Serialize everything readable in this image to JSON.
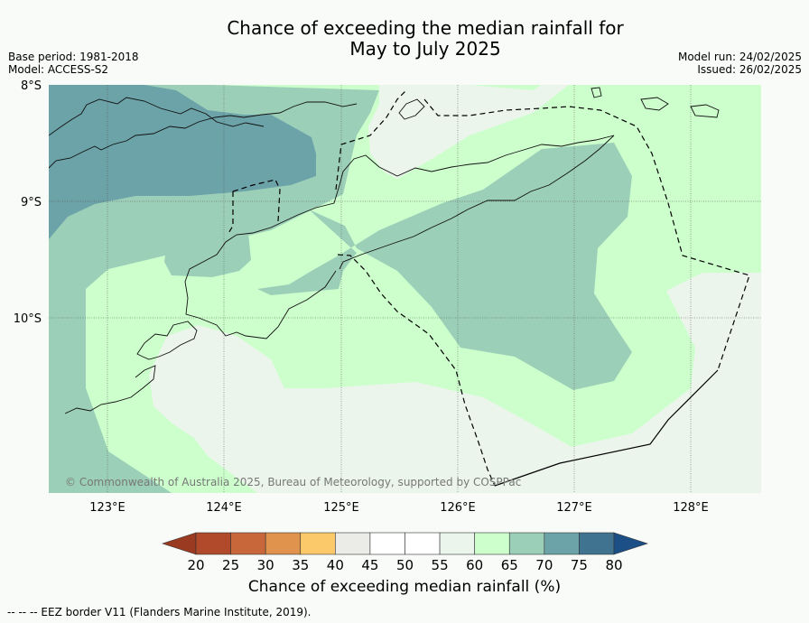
{
  "title_line1": "Chance of exceeding the median rainfall for",
  "title_line2": "May to July 2025",
  "meta_left": [
    "Base period: 1981-2018",
    "Model: ACCESS-S2"
  ],
  "meta_right": [
    "Model run: 24/02/2025",
    "Issued: 26/02/2025"
  ],
  "lat_labels": [
    "8°S",
    "9°S",
    "10°S"
  ],
  "lon_labels": [
    "123°E",
    "124°E",
    "125°E",
    "126°E",
    "127°E",
    "128°E"
  ],
  "copyright": "© Commonwealth of Australia 2025, Bureau of Meteorology, supported by COSPPac",
  "colorbar": {
    "title": "Chance of exceeding median rainfall (%)",
    "ticks": [
      "20",
      "25",
      "30",
      "35",
      "40",
      "45",
      "50",
      "55",
      "60",
      "65",
      "70",
      "75",
      "80"
    ],
    "colors": [
      "#9a3a20",
      "#b04a2b",
      "#c8673a",
      "#e0934d",
      "#fcc96a",
      "#ebebe7",
      "#ffffff",
      "#ffffff",
      "#ebf5eb",
      "#ccffcc",
      "#9ccfb8",
      "#6ca3a8",
      "#3f7390",
      "#1b4f85"
    ]
  },
  "zone_colors": {
    "c55_60": "#ebf5eb",
    "c60_65": "#ccffcc",
    "c65_70": "#9ccfb8",
    "c70_75": "#6ca3a8"
  },
  "footer": "--  --  -- EEZ border V11 (Flanders Marine Institute, 2019)."
}
